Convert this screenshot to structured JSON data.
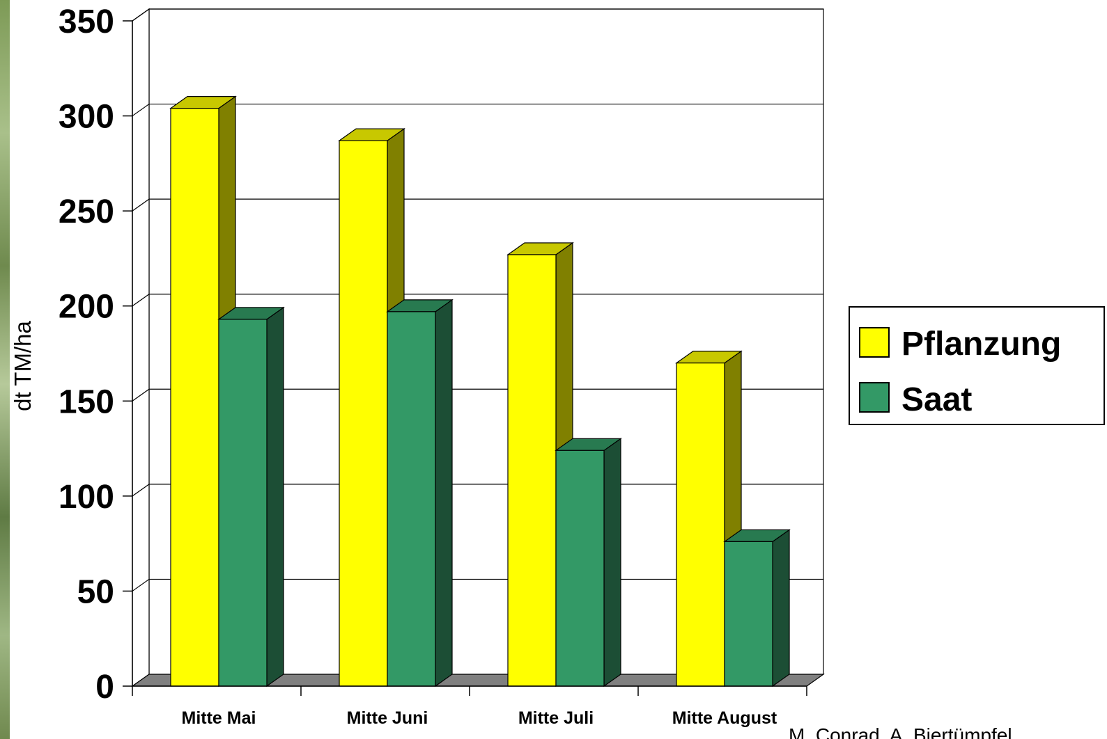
{
  "chart_data": {
    "type": "bar",
    "title": "",
    "xlabel": "",
    "ylabel": "dt TM/ha",
    "ylim": [
      0,
      350
    ],
    "yticks": [
      "0",
      "50",
      "100",
      "150",
      "200",
      "250",
      "300",
      "350"
    ],
    "categories": [
      "Mitte Mai",
      "Mitte Juni",
      "Mitte Juli",
      "Mitte August"
    ],
    "series": [
      {
        "name": "Pflanzung",
        "values": [
          304,
          287,
          227,
          170
        ],
        "color": "#ffff00",
        "side_color": "#808000",
        "top_color": "#c8c800"
      },
      {
        "name": "Saat",
        "values": [
          193,
          197,
          124,
          76
        ],
        "color": "#339966",
        "side_color": "#1c4e35",
        "top_color": "#287a50"
      }
    ],
    "grid": true,
    "legend": "right",
    "three_d": true
  },
  "credit": "M. Conrad, A. Biertümpfel"
}
